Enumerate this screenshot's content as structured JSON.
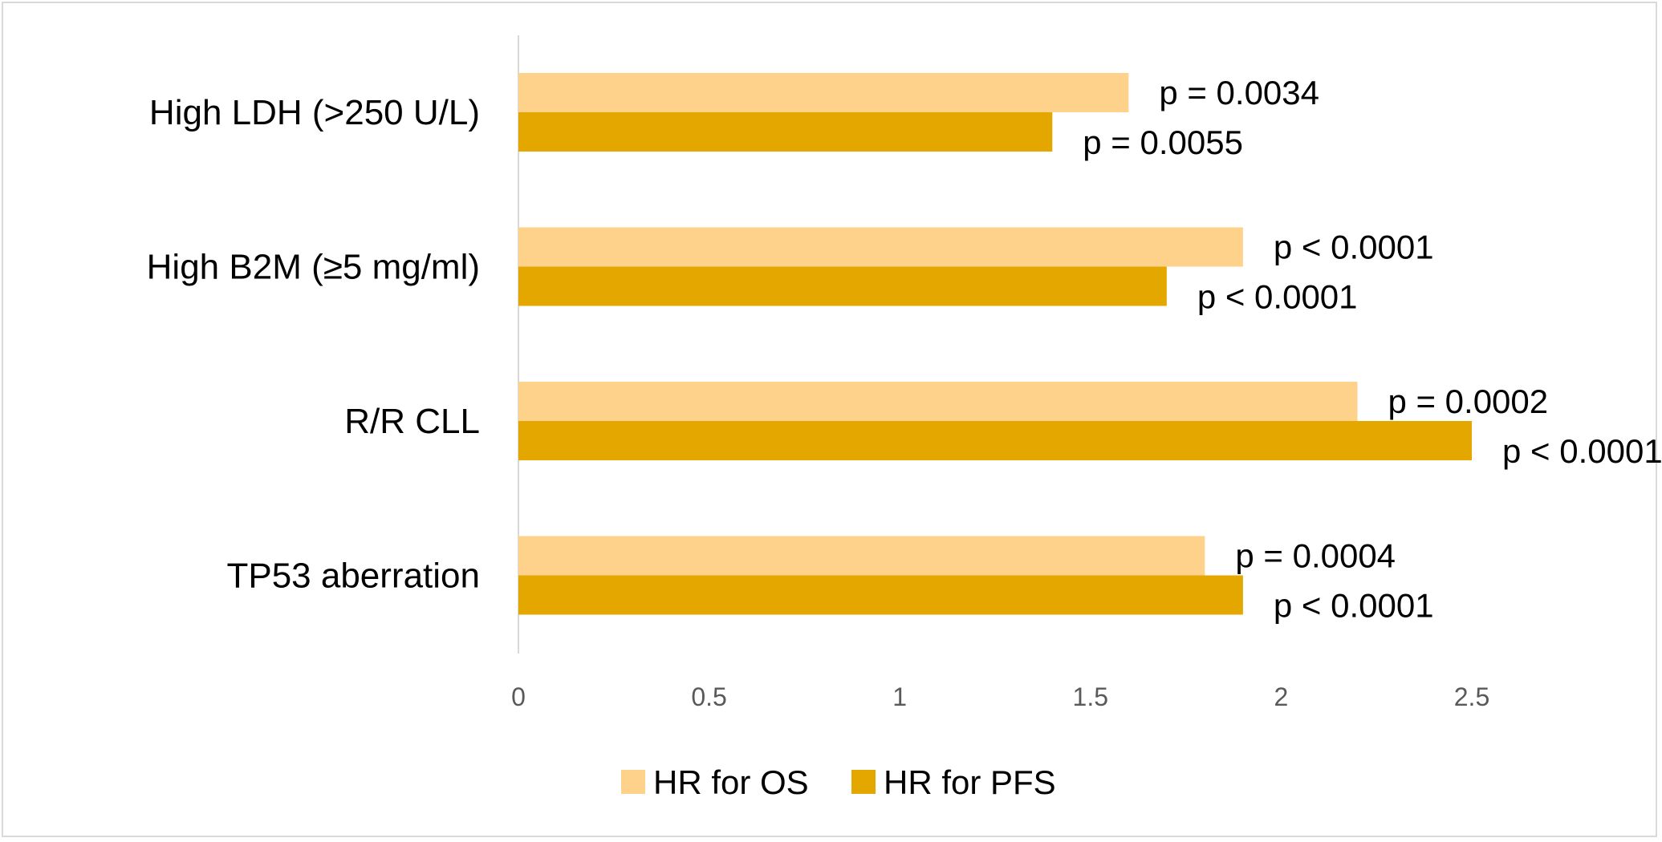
{
  "chart_data": {
    "type": "bar",
    "orientation": "horizontal",
    "categories": [
      "High LDH (>250 U/L)",
      "High B2M (≥5 mg/ml)",
      "R/R CLL",
      "TP53 aberration"
    ],
    "series": [
      {
        "name": "HR for OS",
        "color": "#ffd28c",
        "values": [
          1.6,
          1.9,
          2.2,
          1.8
        ],
        "labels": [
          "p = 0.0034",
          "p < 0.0001",
          "p = 0.0002",
          "p = 0.0004"
        ]
      },
      {
        "name": "HR for PFS",
        "color": "#e3a700",
        "values": [
          1.4,
          1.7,
          2.5,
          1.9
        ],
        "labels": [
          "p = 0.0055",
          "p < 0.0001",
          "p < 0.0001",
          "p < 0.0001"
        ]
      }
    ],
    "xlim": [
      0,
      2.5
    ],
    "x_ticks": [
      "0",
      "0.5",
      "1",
      "1.5",
      "2",
      "2.5"
    ],
    "grid": false,
    "legend_position": "bottom",
    "title": "",
    "xlabel": "",
    "ylabel": ""
  }
}
